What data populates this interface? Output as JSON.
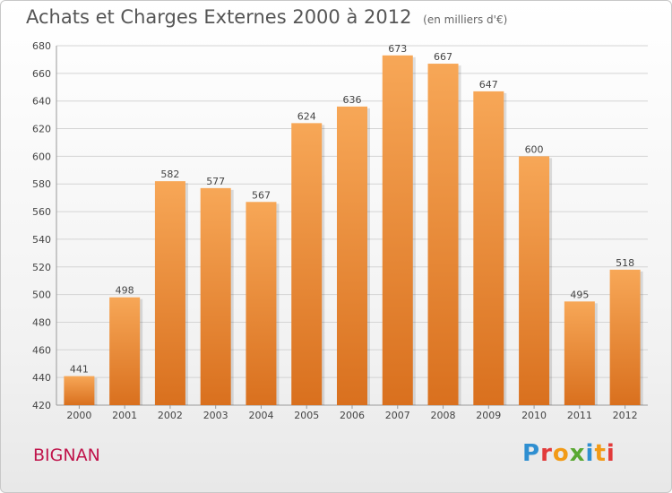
{
  "header": {
    "title": "Achats et Charges Externes 2000 à 2012",
    "subtitle": "(en milliers d'€)"
  },
  "footer": {
    "commune": "BIGNAN",
    "logo_text": "Proxiti"
  },
  "colors": {
    "bar_light": "#f7a757",
    "bar_dark": "#d9701e",
    "commune": "#c0144b",
    "logo_letters": [
      "#2f8fd1",
      "#e23a3a",
      "#f29a16",
      "#5aa832",
      "#2f8fd1",
      "#f29a16",
      "#e23a3a"
    ]
  },
  "chart_data": {
    "type": "bar",
    "categories": [
      "2000",
      "2001",
      "2002",
      "2003",
      "2004",
      "2005",
      "2006",
      "2007",
      "2008",
      "2009",
      "2010",
      "2011",
      "2012"
    ],
    "values": [
      441,
      498,
      582,
      577,
      567,
      624,
      636,
      673,
      667,
      647,
      600,
      495,
      518
    ],
    "ylim": [
      420,
      680
    ],
    "yticks": [
      420,
      440,
      460,
      480,
      500,
      520,
      540,
      560,
      580,
      600,
      620,
      640,
      660,
      680
    ],
    "grid": true,
    "legend": "none"
  }
}
